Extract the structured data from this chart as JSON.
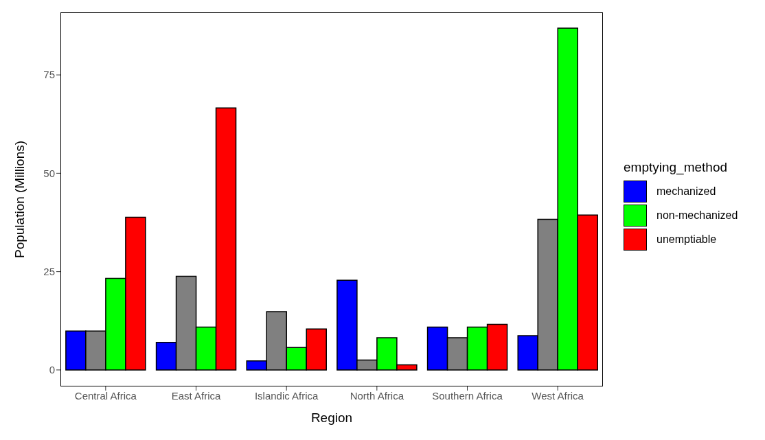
{
  "chart_data": {
    "type": "bar",
    "xlabel": "Region",
    "ylabel": "Population (Millions)",
    "legend_title": "emptying_method",
    "categories": [
      "Central Africa",
      "East Africa",
      "Islandic Africa",
      "North Africa",
      "Southern Africa",
      "West Africa"
    ],
    "series": [
      {
        "name": "mechanized",
        "color": "#0000ff",
        "values": [
          9.9,
          7.0,
          2.3,
          22.8,
          10.9,
          8.7
        ]
      },
      {
        "color": "#808080",
        "values": [
          9.9,
          23.8,
          14.8,
          2.5,
          8.2,
          38.3
        ]
      },
      {
        "name": "non-mechanized",
        "color": "#00ff00",
        "values": [
          23.3,
          10.9,
          5.7,
          8.2,
          10.9,
          86.9
        ]
      },
      {
        "name": "unemptiable",
        "color": "#ff0000",
        "values": [
          38.8,
          66.6,
          10.4,
          1.3,
          11.6,
          39.4
        ]
      }
    ],
    "ylim": [
      -4.2,
      90.9
    ],
    "yticks": [
      0,
      25,
      50,
      75
    ],
    "legend": "right"
  }
}
